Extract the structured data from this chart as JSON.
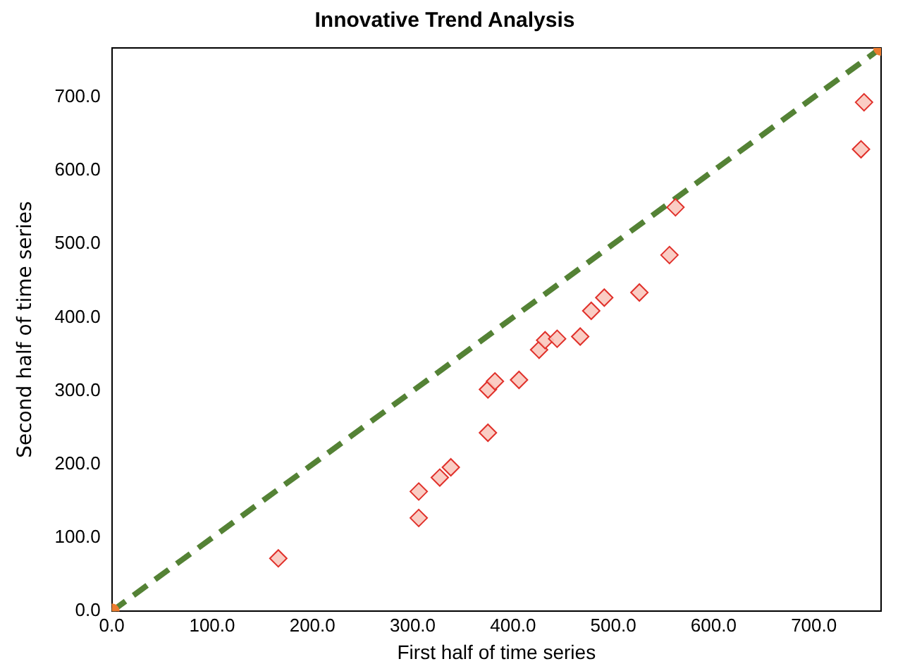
{
  "chart_data": {
    "type": "scatter",
    "title": "Innovative Trend Analysis",
    "xlabel": "First half of time series",
    "ylabel": "Second half of time series",
    "xlim": [
      0,
      767
    ],
    "ylim": [
      0,
      767
    ],
    "xticks": [
      {
        "value": 0,
        "label": "0.0"
      },
      {
        "value": 100,
        "label": "100.0"
      },
      {
        "value": 200,
        "label": "200.0"
      },
      {
        "value": 300,
        "label": "300.0"
      },
      {
        "value": 400,
        "label": "400.0"
      },
      {
        "value": 500,
        "label": "500.0"
      },
      {
        "value": 600,
        "label": "600.0"
      },
      {
        "value": 700,
        "label": "700.0"
      }
    ],
    "yticks": [
      {
        "value": 0,
        "label": "0.0"
      },
      {
        "value": 100,
        "label": "100.0"
      },
      {
        "value": 200,
        "label": "200.0"
      },
      {
        "value": 300,
        "label": "300.0"
      },
      {
        "value": 400,
        "label": "400.0"
      },
      {
        "value": 500,
        "label": "500.0"
      },
      {
        "value": 600,
        "label": "600.0"
      },
      {
        "value": 700,
        "label": "700.0"
      }
    ],
    "grid": false,
    "legend": false,
    "series": [
      {
        "type": "scatter",
        "marker": "diamond",
        "color": "#e0302a",
        "x": [
          166,
          306,
          306,
          327,
          338,
          375,
          375,
          382,
          406,
          426,
          432,
          444,
          467,
          478,
          491,
          526,
          556,
          562,
          747,
          750
        ],
        "values": [
          72,
          127,
          163,
          182,
          196,
          243,
          302,
          313,
          315,
          356,
          369,
          371,
          374,
          409,
          427,
          434,
          485,
          550,
          629,
          693
        ]
      },
      {
        "type": "line",
        "marker": "none",
        "line_style": "dashed",
        "color": "#548235",
        "x": [
          0,
          767
        ],
        "values": [
          0,
          767
        ]
      },
      {
        "type": "scatter",
        "marker": "circle",
        "color": "#ed7d31",
        "x": [
          0,
          767
        ],
        "values": [
          0,
          767
        ]
      }
    ]
  }
}
